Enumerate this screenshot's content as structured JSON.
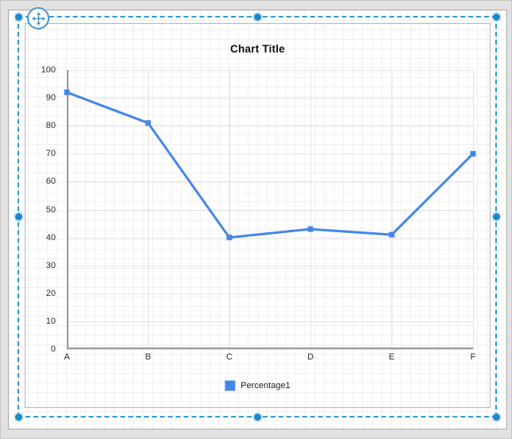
{
  "window": {
    "type": "chart-designer-canvas"
  },
  "chart_data": {
    "type": "line",
    "title": "Chart Title",
    "categories": [
      "A",
      "B",
      "C",
      "D",
      "E",
      "F"
    ],
    "series": [
      {
        "name": "Percentage1",
        "values": [
          92,
          81,
          40,
          43,
          41,
          70
        ],
        "color": "#4486E8",
        "marker": "square"
      }
    ],
    "ylim": [
      0,
      100
    ],
    "y_ticks": [
      0,
      10,
      20,
      30,
      40,
      50,
      60,
      70,
      80,
      90,
      100
    ],
    "xlabel": "",
    "ylabel": "",
    "grid": true,
    "legend_position": "bottom"
  },
  "legend": {
    "label": "Percentage1"
  },
  "icons": {
    "move_handle": "move-4way-arrow-icon",
    "legend_swatch": "series-color-square"
  },
  "colors": {
    "series_blue": "#4486E8",
    "selection_blue": "#2D9BD6",
    "handle_blue": "#1E88C8",
    "gridline": "#E4E4E4",
    "axis": "#9C9C9C",
    "chart_border": "#B5B5B5",
    "surface_gray": "#E1E1E1",
    "design_grid": "#F1F1F1",
    "label_text": "#2B2B2B"
  }
}
